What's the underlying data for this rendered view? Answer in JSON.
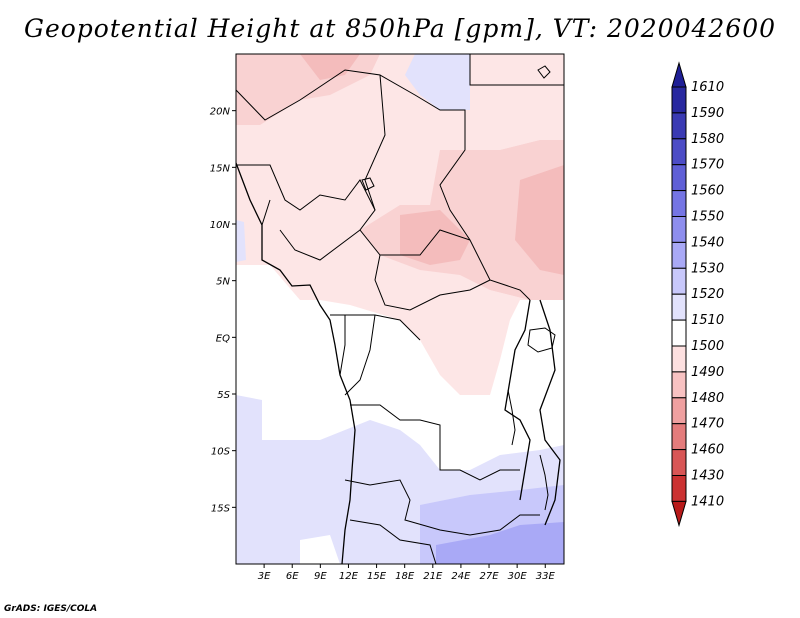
{
  "title": "Geopotential Height at 850hPa [gpm], VT: 2020042600",
  "credit": "GrADS: IGES/COLA",
  "map": {
    "lon_range": [
      0,
      35
    ],
    "lat_range": [
      -20,
      25
    ],
    "lat_labels": [
      {
        "text": "20N",
        "lat": 20
      },
      {
        "text": "15N",
        "lat": 15
      },
      {
        "text": "10N",
        "lat": 10
      },
      {
        "text": "5N",
        "lat": 5
      },
      {
        "text": "EQ",
        "lat": 0
      },
      {
        "text": "5S",
        "lat": -5
      },
      {
        "text": "10S",
        "lat": -10
      },
      {
        "text": "15S",
        "lat": -15
      }
    ],
    "lon_labels": [
      {
        "text": "3E",
        "lon": 3
      },
      {
        "text": "6E",
        "lon": 6
      },
      {
        "text": "9E",
        "lon": 9
      },
      {
        "text": "12E",
        "lon": 12
      },
      {
        "text": "15E",
        "lon": 15
      },
      {
        "text": "18E",
        "lon": 18
      },
      {
        "text": "21E",
        "lon": 21
      },
      {
        "text": "24E",
        "lon": 24
      },
      {
        "text": "27E",
        "lon": 27
      },
      {
        "text": "30E",
        "lon": 30
      },
      {
        "text": "33E",
        "lon": 33
      }
    ]
  },
  "colorbar": {
    "levels": [
      "1610",
      "1590",
      "1580",
      "1570",
      "1560",
      "1550",
      "1540",
      "1530",
      "1520",
      "1510",
      "1500",
      "1490",
      "1480",
      "1470",
      "1460",
      "1430",
      "1410"
    ],
    "colors": [
      "#1f1f96",
      "#28289f",
      "#3a3ab3",
      "#4c4cc6",
      "#5f5fd6",
      "#7575e4",
      "#8e8eee",
      "#a9a9f6",
      "#c8c8fb",
      "#e2e2fc",
      "#ffffff",
      "#fde0e0",
      "#f8c2c2",
      "#efa0a0",
      "#e47c7c",
      "#d85656",
      "#cb3232",
      "#b81a1a"
    ]
  },
  "colors": {
    "pink_light": "#fde6e6",
    "pink_mid": "#f9d2d2",
    "pink_dark": "#f4bcbc",
    "blue_light": "#e2e2fc",
    "blue_mid": "#c8c8fb",
    "blue_dark": "#a9a9f6"
  }
}
